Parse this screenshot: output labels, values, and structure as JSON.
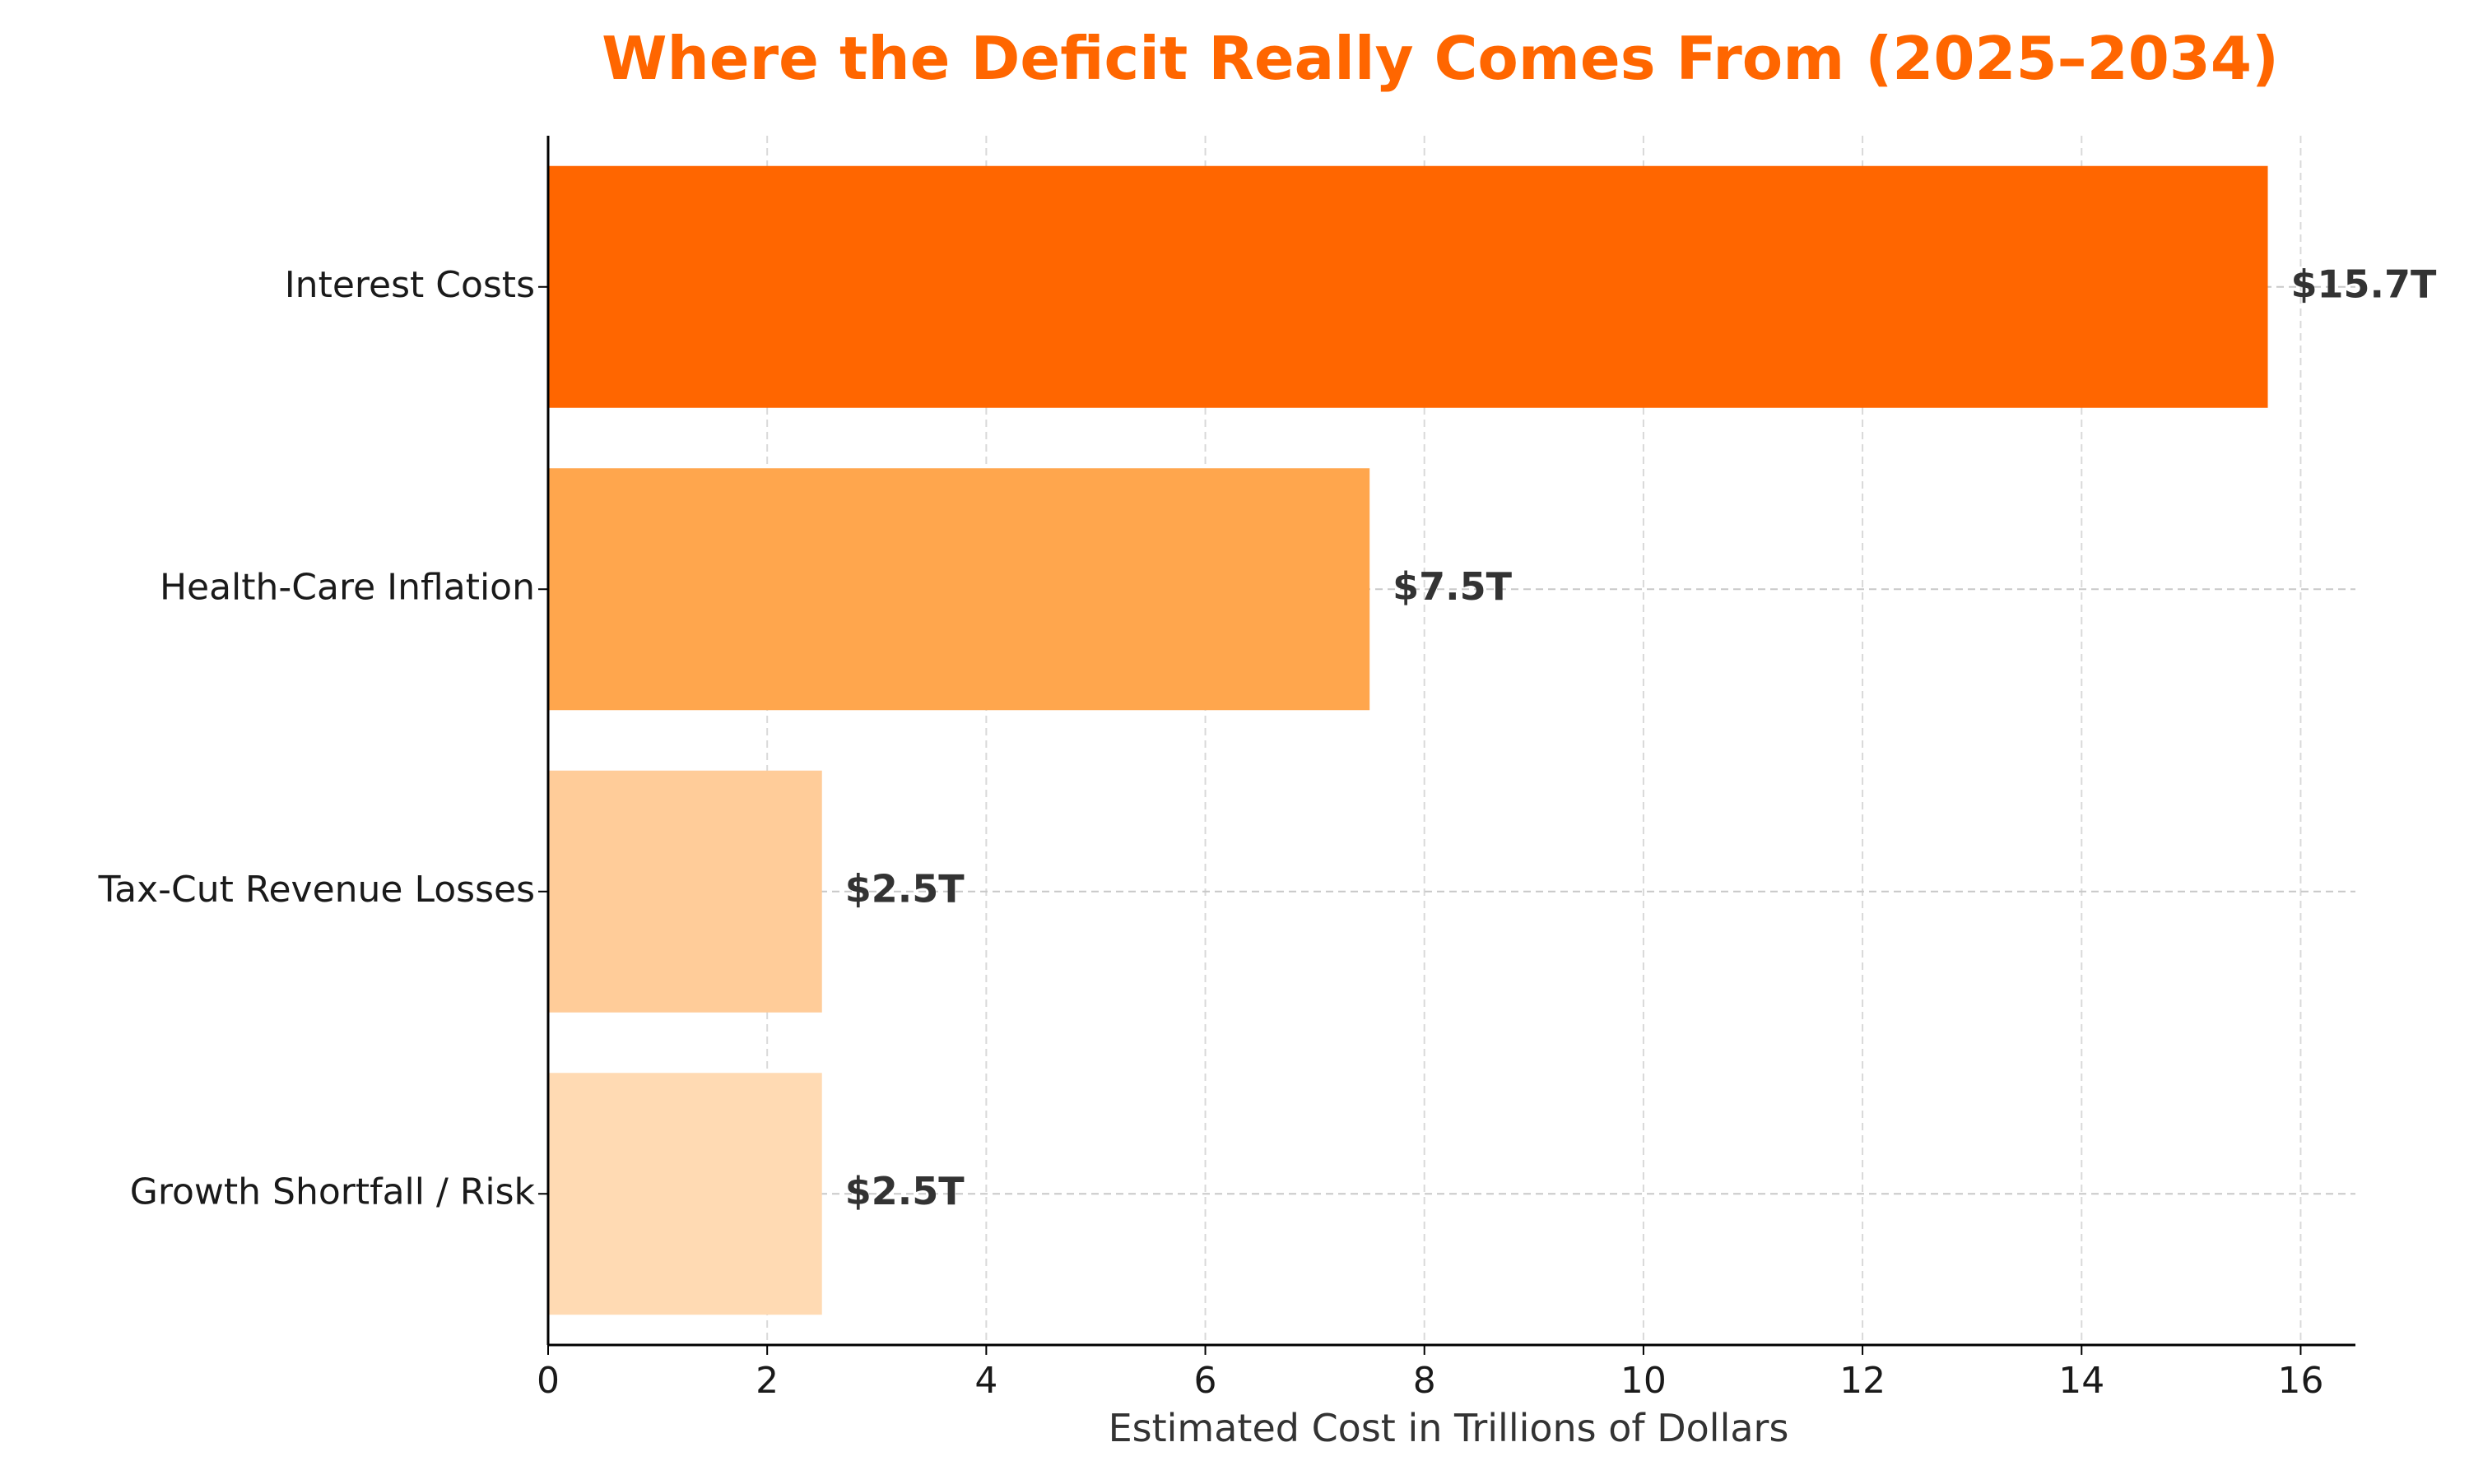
{
  "chart_data": {
    "type": "bar",
    "orientation": "horizontal",
    "title": "Where the Deficit Really Comes From (2025–2034)",
    "xlabel": "Estimated Cost in Trillions of Dollars",
    "ylabel": "",
    "categories": [
      "Interest Costs",
      "Health-Care Inflation",
      "Tax-Cut Revenue Losses",
      "Growth Shortfall / Risk"
    ],
    "values": [
      15.7,
      7.5,
      2.5,
      2.5
    ],
    "value_labels": [
      "$15.7T",
      "$7.5T",
      "$2.5T",
      "$2.5T"
    ],
    "bar_colors": [
      "#ff6600",
      "#ffa64d",
      "#ffcc99",
      "#ffdab3"
    ],
    "xlim": [
      0,
      16.5
    ],
    "xticks": [
      0,
      2,
      4,
      6,
      8,
      10,
      12,
      14,
      16
    ],
    "xtick_labels": [
      "0",
      "2",
      "4",
      "6",
      "8",
      "10",
      "12",
      "14",
      "16"
    ],
    "grid": true,
    "title_color": "#ff6600",
    "axis_label_color": "#333333",
    "value_label_color": "#333333"
  }
}
